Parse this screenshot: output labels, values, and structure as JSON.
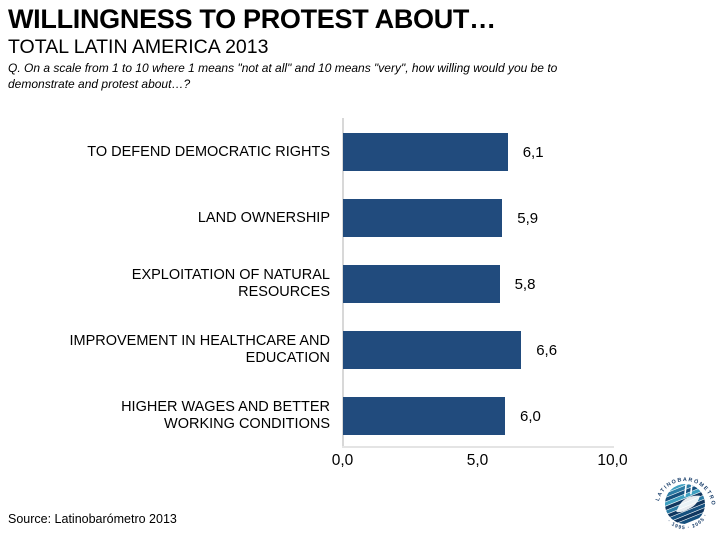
{
  "page": {
    "title": "WILLINGNESS TO PROTEST ABOUT…",
    "subtitle": "TOTAL LATIN AMERICA 2013",
    "question": "Q. On a scale from 1 to 10 where 1 means \"not at all\" and 10 means \"very\", how willing would you be to demonstrate and protest about…?",
    "question_lines": [
      "Q. On a scale from 1 to 10 where 1 means \"not at all\" and 10 means \"very\", how willing would you be to",
      "demonstrate and protest about…?"
    ],
    "source": "Source: Latinobarómetro 2013"
  },
  "logo": {
    "ring_top": "LATINOBARÓMETRO",
    "ring_bottom": "· 1995 · 2005 ·"
  },
  "chart_data": {
    "type": "bar",
    "orientation": "horizontal",
    "title": "WILLINGNESS TO PROTEST ABOUT…",
    "xlabel": "",
    "ylabel": "",
    "xlim": [
      0,
      10
    ],
    "grid": false,
    "legend": false,
    "categories": [
      "TO DEFEND DEMOCRATIC RIGHTS",
      "LAND OWNERSHIP",
      "EXPLOITATION OF NATURAL RESOURCES",
      "IMPROVEMENT IN HEALTHCARE AND EDUCATION",
      "HIGHER WAGES AND BETTER WORKING CONDITIONS"
    ],
    "category_lines": [
      [
        "TO DEFEND DEMOCRATIC RIGHTS"
      ],
      [
        "LAND OWNERSHIP"
      ],
      [
        "EXPLOITATION OF NATURAL",
        "RESOURCES"
      ],
      [
        "IMPROVEMENT IN HEALTHCARE AND",
        "EDUCATION"
      ],
      [
        "HIGHER WAGES AND BETTER",
        "WORKING CONDITIONS"
      ]
    ],
    "values": [
      6.1,
      5.9,
      5.8,
      6.6,
      6.0
    ],
    "value_labels": [
      "6,1",
      "5,9",
      "5,8",
      "6,6",
      "6,0"
    ],
    "x_ticks": [
      {
        "label": "0,0",
        "value": 0
      },
      {
        "label": "5,0",
        "value": 5
      },
      {
        "label": "10,0",
        "value": 10
      }
    ],
    "bar_color": "#214B7D",
    "axis_color": "#D8D8D8"
  }
}
